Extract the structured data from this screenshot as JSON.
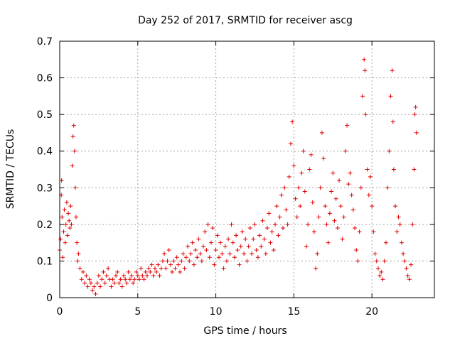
{
  "chart_data": {
    "type": "scatter",
    "title": "Day 252 of 2017, SRMTID for receiver ascg",
    "xlabel": "GPS time / hours",
    "ylabel": "SRMTID / TECUs",
    "xlim": [
      0,
      24
    ],
    "ylim": [
      0,
      0.7
    ],
    "x_ticks": [
      0,
      5,
      10,
      15,
      20
    ],
    "x_tick_labels": [
      "0",
      "5",
      "10",
      "15",
      "20"
    ],
    "y_ticks": [
      0,
      0.1,
      0.2,
      0.3,
      0.4,
      0.5,
      0.6,
      0.7
    ],
    "y_tick_labels": [
      "0",
      "0.1",
      "0.2",
      "0.3",
      "0.4",
      "0.5",
      "0.6",
      "0.7"
    ],
    "grid": true,
    "marker": "+",
    "color": "#e00000",
    "series": [
      {
        "name": "SRMTID",
        "points": [
          [
            0.0,
            0.13
          ],
          [
            0.05,
            0.16
          ],
          [
            0.1,
            0.28
          ],
          [
            0.12,
            0.32
          ],
          [
            0.15,
            0.22
          ],
          [
            0.2,
            0.11
          ],
          [
            0.25,
            0.18
          ],
          [
            0.3,
            0.24
          ],
          [
            0.35,
            0.15
          ],
          [
            0.4,
            0.2
          ],
          [
            0.45,
            0.26
          ],
          [
            0.5,
            0.17
          ],
          [
            0.55,
            0.23
          ],
          [
            0.6,
            0.21
          ],
          [
            0.65,
            0.19
          ],
          [
            0.7,
            0.25
          ],
          [
            0.75,
            0.2
          ],
          [
            0.8,
            0.36
          ],
          [
            0.85,
            0.44
          ],
          [
            0.9,
            0.47
          ],
          [
            0.95,
            0.4
          ],
          [
            1.0,
            0.3
          ],
          [
            1.05,
            0.22
          ],
          [
            1.1,
            0.15
          ],
          [
            1.15,
            0.1
          ],
          [
            1.2,
            0.12
          ],
          [
            1.3,
            0.08
          ],
          [
            1.4,
            0.05
          ],
          [
            1.5,
            0.07
          ],
          [
            1.6,
            0.04
          ],
          [
            1.7,
            0.06
          ],
          [
            1.8,
            0.03
          ],
          [
            1.9,
            0.05
          ],
          [
            2.0,
            0.04
          ],
          [
            2.1,
            0.02
          ],
          [
            2.2,
            0.03
          ],
          [
            2.3,
            0.01
          ],
          [
            2.4,
            0.04
          ],
          [
            2.5,
            0.06
          ],
          [
            2.6,
            0.03
          ],
          [
            2.7,
            0.05
          ],
          [
            2.8,
            0.07
          ],
          [
            2.9,
            0.04
          ],
          [
            3.0,
            0.06
          ],
          [
            3.1,
            0.08
          ],
          [
            3.2,
            0.05
          ],
          [
            3.3,
            0.03
          ],
          [
            3.4,
            0.05
          ],
          [
            3.5,
            0.04
          ],
          [
            3.6,
            0.06
          ],
          [
            3.7,
            0.07
          ],
          [
            3.8,
            0.04
          ],
          [
            3.9,
            0.05
          ],
          [
            4.0,
            0.03
          ],
          [
            4.1,
            0.06
          ],
          [
            4.2,
            0.05
          ],
          [
            4.3,
            0.04
          ],
          [
            4.4,
            0.07
          ],
          [
            4.5,
            0.05
          ],
          [
            4.6,
            0.06
          ],
          [
            4.7,
            0.04
          ],
          [
            4.8,
            0.05
          ],
          [
            4.9,
            0.07
          ],
          [
            5.0,
            0.06
          ],
          [
            5.1,
            0.05
          ],
          [
            5.2,
            0.08
          ],
          [
            5.3,
            0.06
          ],
          [
            5.4,
            0.05
          ],
          [
            5.5,
            0.07
          ],
          [
            5.6,
            0.06
          ],
          [
            5.7,
            0.08
          ],
          [
            5.8,
            0.07
          ],
          [
            5.9,
            0.09
          ],
          [
            6.0,
            0.06
          ],
          [
            6.1,
            0.08
          ],
          [
            6.2,
            0.07
          ],
          [
            6.3,
            0.09
          ],
          [
            6.4,
            0.06
          ],
          [
            6.5,
            0.08
          ],
          [
            6.6,
            0.1
          ],
          [
            6.7,
            0.12
          ],
          [
            6.8,
            0.08
          ],
          [
            6.9,
            0.1
          ],
          [
            7.0,
            0.13
          ],
          [
            7.1,
            0.09
          ],
          [
            7.2,
            0.07
          ],
          [
            7.3,
            0.1
          ],
          [
            7.4,
            0.08
          ],
          [
            7.5,
            0.11
          ],
          [
            7.6,
            0.09
          ],
          [
            7.7,
            0.07
          ],
          [
            7.8,
            0.1
          ],
          [
            7.9,
            0.12
          ],
          [
            8.0,
            0.08
          ],
          [
            8.1,
            0.11
          ],
          [
            8.2,
            0.14
          ],
          [
            8.3,
            0.1
          ],
          [
            8.4,
            0.12
          ],
          [
            8.5,
            0.15
          ],
          [
            8.6,
            0.09
          ],
          [
            8.7,
            0.13
          ],
          [
            8.8,
            0.11
          ],
          [
            8.9,
            0.16
          ],
          [
            9.0,
            0.12
          ],
          [
            9.1,
            0.1
          ],
          [
            9.2,
            0.14
          ],
          [
            9.3,
            0.18
          ],
          [
            9.4,
            0.13
          ],
          [
            9.5,
            0.2
          ],
          [
            9.6,
            0.11
          ],
          [
            9.7,
            0.15
          ],
          [
            9.8,
            0.19
          ],
          [
            9.9,
            0.09
          ],
          [
            10.0,
            0.13
          ],
          [
            10.1,
            0.17
          ],
          [
            10.2,
            0.11
          ],
          [
            10.3,
            0.15
          ],
          [
            10.4,
            0.12
          ],
          [
            10.5,
            0.08
          ],
          [
            10.6,
            0.14
          ],
          [
            10.7,
            0.1
          ],
          [
            10.8,
            0.16
          ],
          [
            10.9,
            0.12
          ],
          [
            11.0,
            0.2
          ],
          [
            11.1,
            0.15
          ],
          [
            11.2,
            0.11
          ],
          [
            11.3,
            0.17
          ],
          [
            11.4,
            0.13
          ],
          [
            11.5,
            0.09
          ],
          [
            11.6,
            0.14
          ],
          [
            11.7,
            0.18
          ],
          [
            11.8,
            0.12
          ],
          [
            11.9,
            0.16
          ],
          [
            12.0,
            0.1
          ],
          [
            12.1,
            0.14
          ],
          [
            12.2,
            0.19
          ],
          [
            12.3,
            0.12
          ],
          [
            12.4,
            0.16
          ],
          [
            12.5,
            0.2
          ],
          [
            12.6,
            0.13
          ],
          [
            12.7,
            0.11
          ],
          [
            12.8,
            0.17
          ],
          [
            12.9,
            0.14
          ],
          [
            13.0,
            0.21
          ],
          [
            13.1,
            0.16
          ],
          [
            13.2,
            0.12
          ],
          [
            13.3,
            0.19
          ],
          [
            13.4,
            0.23
          ],
          [
            13.5,
            0.15
          ],
          [
            13.6,
            0.18
          ],
          [
            13.7,
            0.13
          ],
          [
            13.8,
            0.2
          ],
          [
            13.9,
            0.25
          ],
          [
            14.0,
            0.17
          ],
          [
            14.1,
            0.22
          ],
          [
            14.2,
            0.28
          ],
          [
            14.3,
            0.19
          ],
          [
            14.4,
            0.3
          ],
          [
            14.5,
            0.24
          ],
          [
            14.6,
            0.2
          ],
          [
            14.7,
            0.33
          ],
          [
            14.8,
            0.42
          ],
          [
            14.9,
            0.48
          ],
          [
            15.0,
            0.36
          ],
          [
            15.1,
            0.27
          ],
          [
            15.2,
            0.22
          ],
          [
            15.3,
            0.3
          ],
          [
            15.4,
            0.25
          ],
          [
            15.5,
            0.34
          ],
          [
            15.6,
            0.4
          ],
          [
            15.7,
            0.29
          ],
          [
            15.8,
            0.14
          ],
          [
            15.9,
            0.2
          ],
          [
            16.0,
            0.35
          ],
          [
            16.1,
            0.39
          ],
          [
            16.2,
            0.26
          ],
          [
            16.3,
            0.18
          ],
          [
            16.4,
            0.08
          ],
          [
            16.5,
            0.12
          ],
          [
            16.6,
            0.22
          ],
          [
            16.7,
            0.3
          ],
          [
            16.8,
            0.45
          ],
          [
            16.9,
            0.38
          ],
          [
            17.0,
            0.25
          ],
          [
            17.1,
            0.2
          ],
          [
            17.2,
            0.15
          ],
          [
            17.3,
            0.23
          ],
          [
            17.4,
            0.29
          ],
          [
            17.5,
            0.34
          ],
          [
            17.6,
            0.21
          ],
          [
            17.7,
            0.27
          ],
          [
            17.8,
            0.19
          ],
          [
            17.9,
            0.32
          ],
          [
            18.0,
            0.25
          ],
          [
            18.1,
            0.16
          ],
          [
            18.2,
            0.22
          ],
          [
            18.3,
            0.4
          ],
          [
            18.4,
            0.47
          ],
          [
            18.5,
            0.31
          ],
          [
            18.6,
            0.34
          ],
          [
            18.7,
            0.28
          ],
          [
            18.8,
            0.24
          ],
          [
            18.9,
            0.19
          ],
          [
            19.0,
            0.13
          ],
          [
            19.1,
            0.1
          ],
          [
            19.2,
            0.18
          ],
          [
            19.3,
            0.3
          ],
          [
            19.4,
            0.55
          ],
          [
            19.5,
            0.65
          ],
          [
            19.55,
            0.62
          ],
          [
            19.6,
            0.5
          ],
          [
            19.7,
            0.35
          ],
          [
            19.8,
            0.28
          ],
          [
            19.9,
            0.33
          ],
          [
            20.0,
            0.25
          ],
          [
            20.1,
            0.18
          ],
          [
            20.2,
            0.12
          ],
          [
            20.3,
            0.1
          ],
          [
            20.4,
            0.08
          ],
          [
            20.5,
            0.06
          ],
          [
            20.6,
            0.07
          ],
          [
            20.7,
            0.05
          ],
          [
            20.8,
            0.1
          ],
          [
            20.9,
            0.15
          ],
          [
            21.0,
            0.3
          ],
          [
            21.1,
            0.4
          ],
          [
            21.2,
            0.55
          ],
          [
            21.3,
            0.62
          ],
          [
            21.35,
            0.48
          ],
          [
            21.4,
            0.35
          ],
          [
            21.5,
            0.25
          ],
          [
            21.6,
            0.18
          ],
          [
            21.7,
            0.22
          ],
          [
            21.8,
            0.2
          ],
          [
            21.9,
            0.15
          ],
          [
            22.0,
            0.12
          ],
          [
            22.1,
            0.1
          ],
          [
            22.2,
            0.08
          ],
          [
            22.3,
            0.06
          ],
          [
            22.4,
            0.05
          ],
          [
            22.5,
            0.09
          ],
          [
            22.6,
            0.2
          ],
          [
            22.7,
            0.35
          ],
          [
            22.75,
            0.5
          ],
          [
            22.8,
            0.52
          ],
          [
            22.85,
            0.45
          ]
        ]
      }
    ]
  }
}
